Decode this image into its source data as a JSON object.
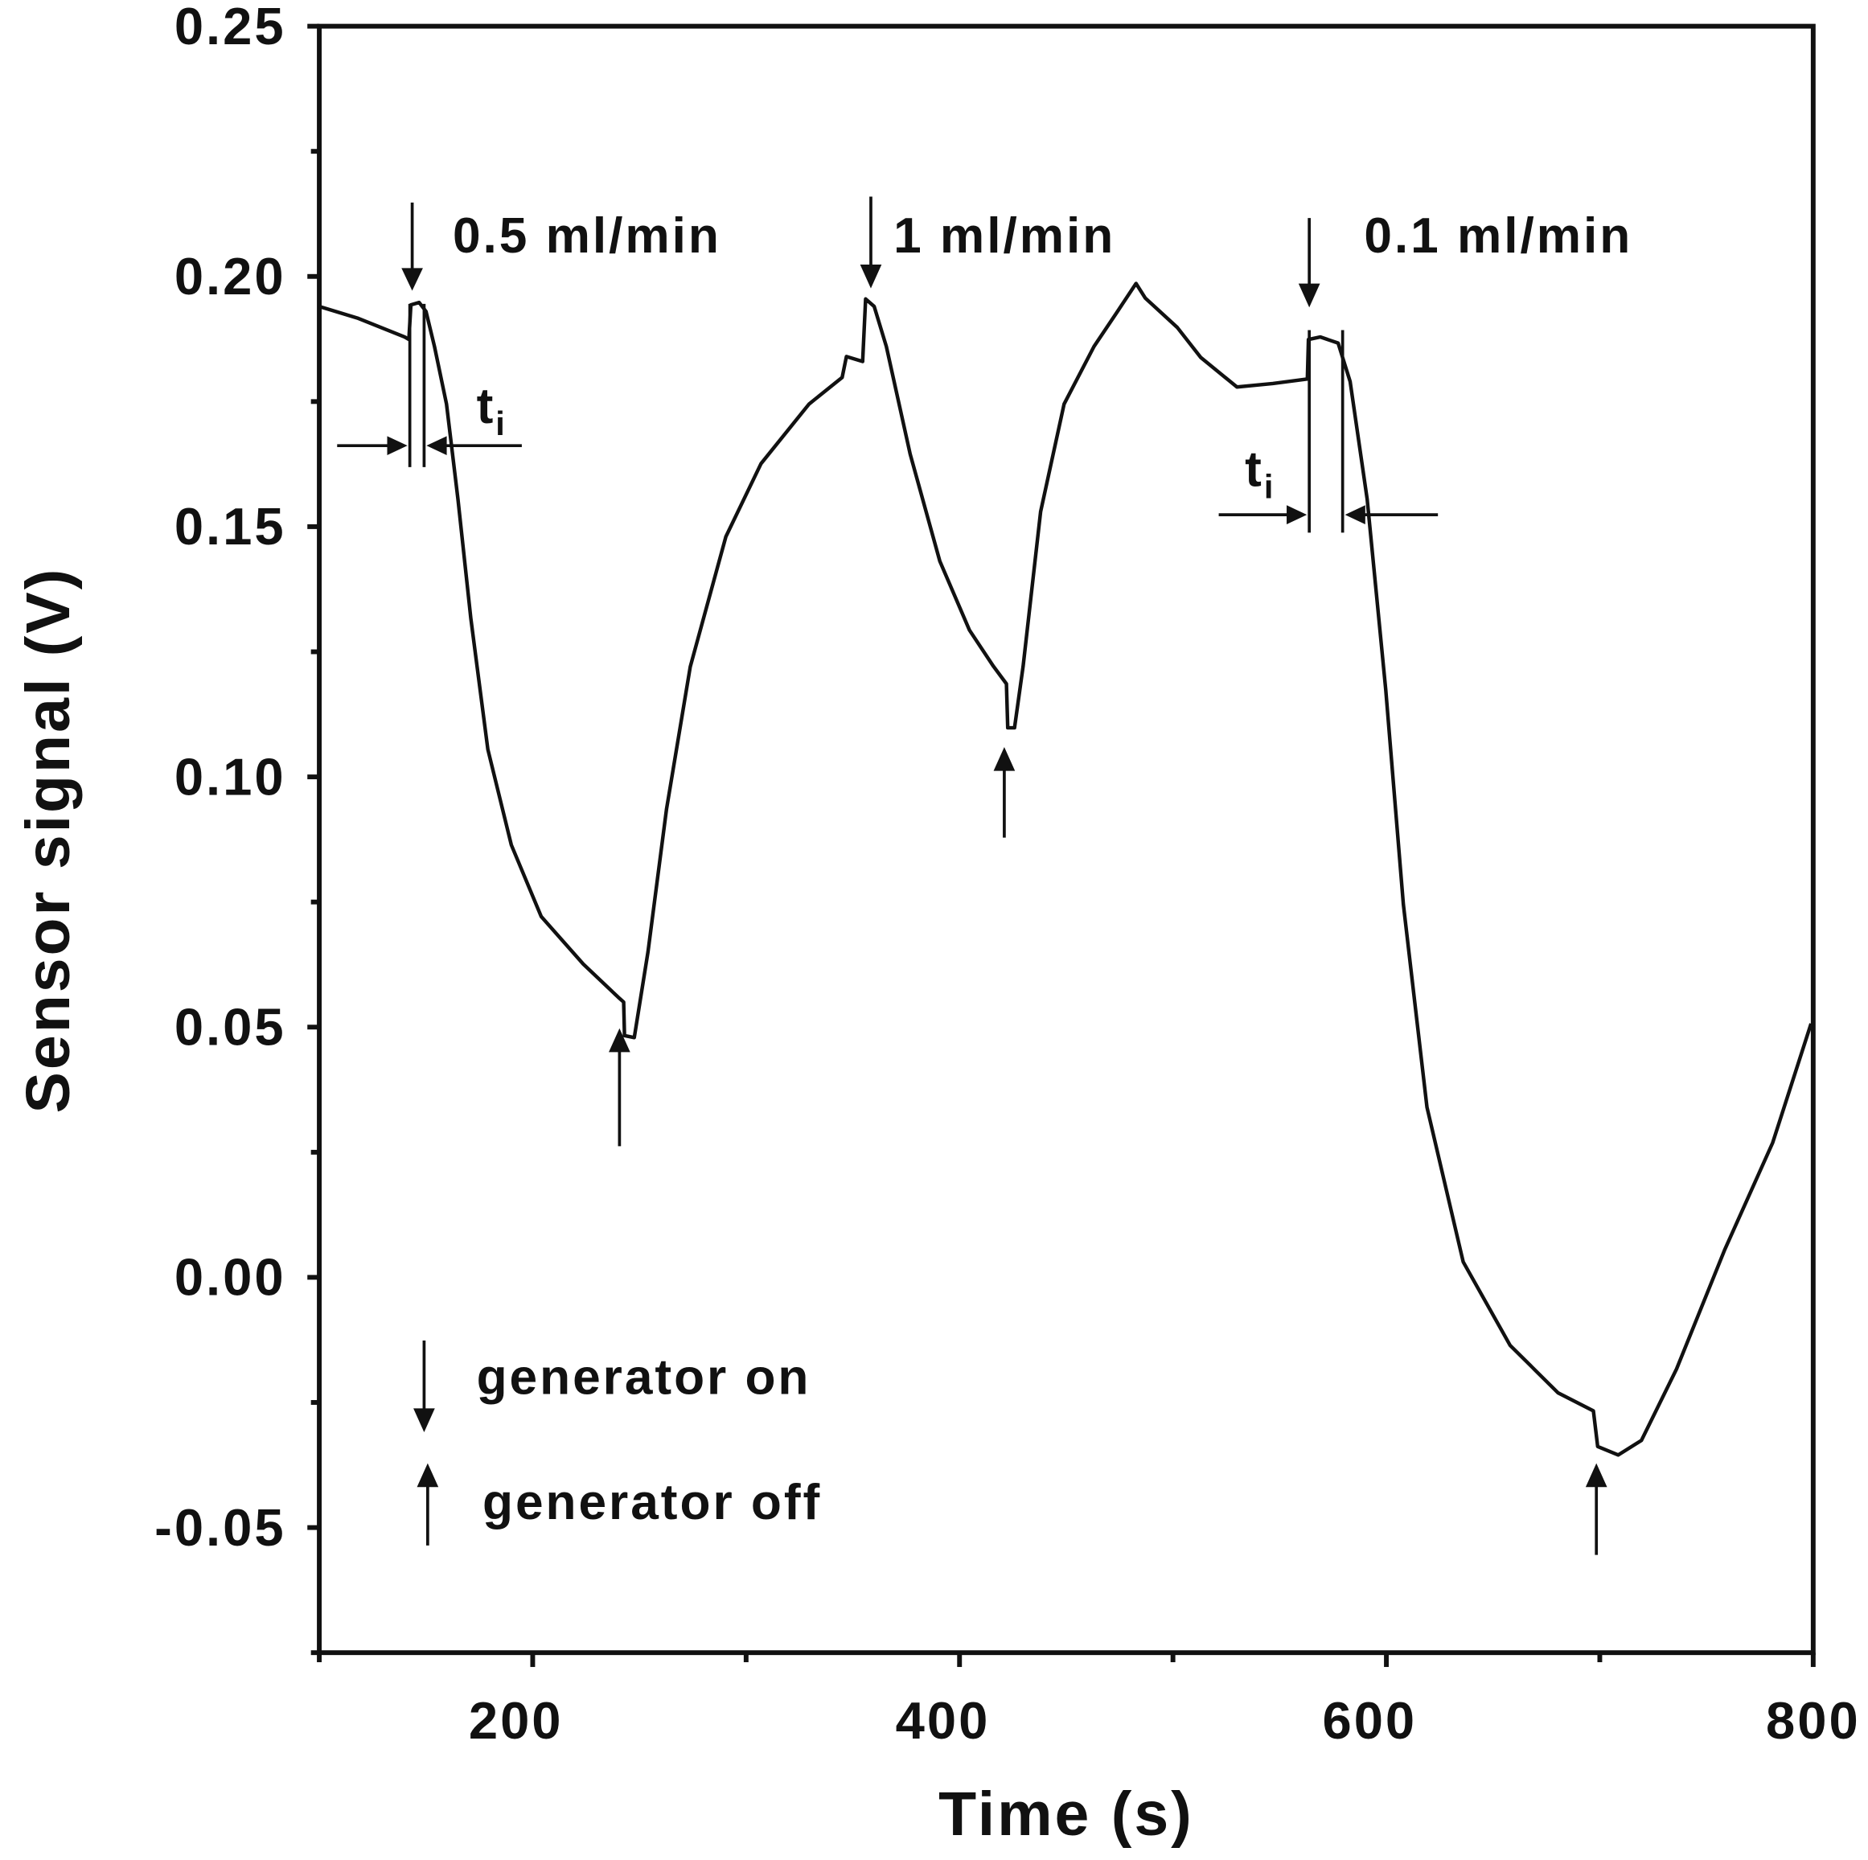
{
  "chart_data": {
    "type": "line",
    "xlabel": "Time (s)",
    "ylabel": "Sensor signal (V)",
    "x": [
      100,
      117.8,
      140,
      142,
      142.9,
      146.8,
      150,
      154,
      159.6,
      165,
      171,
      179,
      190,
      204,
      223.7,
      240,
      242.6,
      243,
      247.6,
      254,
      262.7,
      273.8,
      290.5,
      307,
      329.5,
      345,
      347,
      354.6,
      356,
      360,
      365.7,
      376.9,
      390.8,
      404.7,
      415.9,
      422,
      422.6,
      425.8,
      429.8,
      438,
      449,
      463,
      474,
      482.7,
      487,
      502,
      513,
      530,
      546.8,
      563,
      563.5,
      569,
      577.4,
      583,
      591,
      599.7,
      608,
      619,
      636,
      658,
      680.5,
      697,
      699,
      708.6,
      719.5,
      736,
      758.5,
      781,
      799
    ],
    "values": [
      0.194,
      0.1917,
      0.1879,
      0.1874,
      0.1943,
      0.1948,
      0.193,
      0.186,
      0.1745,
      0.1555,
      0.1317,
      0.1055,
      0.0864,
      0.0721,
      0.0626,
      0.056,
      0.055,
      0.0483,
      0.0479,
      0.065,
      0.0936,
      0.122,
      0.148,
      0.1626,
      0.1745,
      0.1798,
      0.184,
      0.183,
      0.1955,
      0.194,
      0.186,
      0.1645,
      0.1431,
      0.1293,
      0.1221,
      0.1186,
      0.1098,
      0.1098,
      0.1221,
      0.153,
      0.1745,
      0.186,
      0.193,
      0.1986,
      0.1957,
      0.1898,
      0.1838,
      0.1779,
      0.1786,
      0.1795,
      0.1874,
      0.1879,
      0.1867,
      0.179,
      0.1555,
      0.1174,
      0.0745,
      0.034,
      0.0031,
      -0.0136,
      -0.0231,
      -0.0267,
      -0.0338,
      -0.0355,
      -0.0326,
      -0.0183,
      0.0055,
      0.0269,
      0.0507
    ],
    "color": "#111111",
    "xlim": [
      100,
      800
    ],
    "xticks": [
      200,
      400,
      600,
      800
    ],
    "xticks_minor": [
      100,
      300,
      500,
      700
    ],
    "ylim": [
      -0.075,
      0.25
    ],
    "yticks": [
      {
        "value": -0.05,
        "label": "-0.05"
      },
      {
        "value": 0,
        "label": "0.00"
      },
      0.05,
      {
        "value": 0.1,
        "label": "0.10"
      },
      0.15,
      {
        "value": 0.2,
        "label": "0.20"
      },
      0.25
    ],
    "yticks_minor": [
      -0.075,
      -0.025,
      0.025,
      0.075,
      0.125,
      0.175,
      0.225
    ],
    "annotations": {
      "flow1": "0.5 ml/min",
      "flow2": "1 ml/min",
      "flow3": "0.1 ml/min",
      "t": "t",
      "sub": "i",
      "on": "generator on",
      "off": "generator off"
    },
    "grid": false
  }
}
